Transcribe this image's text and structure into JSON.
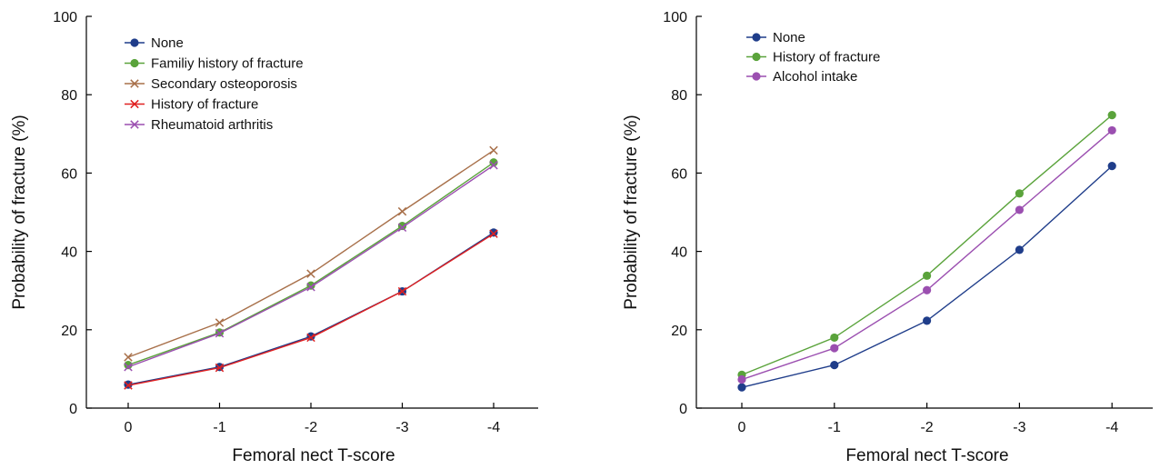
{
  "chart_data": [
    {
      "type": "line",
      "xlabel": "Femoral nect T-score",
      "ylabel": "Probability of fracture (%)",
      "categories": [
        "0",
        "-1",
        "-2",
        "-3",
        "-4"
      ],
      "ylim": [
        0,
        100
      ],
      "yticks": [
        0,
        20,
        40,
        60,
        80,
        100
      ],
      "grid": false,
      "legend_position": "top-left",
      "series": [
        {
          "name": "None",
          "color": "#1f3d8a",
          "marker": "circle",
          "values": [
            6,
            10.5,
            18.3,
            29.8,
            44.8
          ]
        },
        {
          "name": "Familiy history of fracture",
          "color": "#5aa33b",
          "marker": "circle",
          "values": [
            11,
            19.3,
            31.3,
            46.5,
            62.7
          ]
        },
        {
          "name": "Secondary osteoporosis",
          "color": "#a8704a",
          "marker": "x",
          "values": [
            13,
            21.8,
            34.3,
            50.2,
            65.8
          ]
        },
        {
          "name": "History of fracture",
          "color": "#e02020",
          "marker": "x",
          "values": [
            5.8,
            10.3,
            18,
            29.8,
            44.5
          ]
        },
        {
          "name": "Rheumatoid arthritis",
          "color": "#9b4fb0",
          "marker": "x",
          "values": [
            10.5,
            19.1,
            30.9,
            46.1,
            62
          ]
        }
      ]
    },
    {
      "type": "line",
      "xlabel": "Femoral nect T-score",
      "ylabel": "Probability of fracture (%)",
      "categories": [
        "0",
        "-1",
        "-2",
        "-3",
        "-4"
      ],
      "ylim": [
        0,
        100
      ],
      "yticks": [
        0,
        20,
        40,
        60,
        80,
        100
      ],
      "grid": false,
      "legend_position": "top-left",
      "series": [
        {
          "name": "None",
          "color": "#1f3d8a",
          "marker": "circle",
          "values": [
            5.3,
            11,
            22.3,
            40.4,
            61.8
          ]
        },
        {
          "name": "History of fracture",
          "color": "#5aa33b",
          "marker": "circle",
          "values": [
            8.5,
            18,
            33.8,
            54.8,
            74.8
          ]
        },
        {
          "name": "Alcohol intake",
          "color": "#9b4fb0",
          "marker": "circle",
          "values": [
            7.3,
            15.3,
            30.1,
            50.6,
            70.9
          ]
        }
      ]
    }
  ]
}
